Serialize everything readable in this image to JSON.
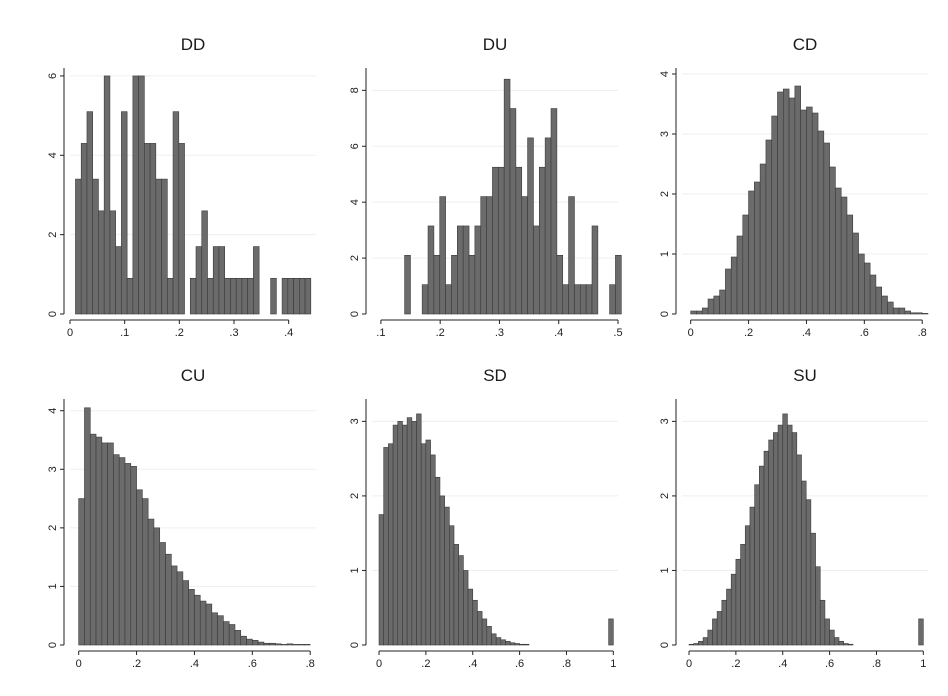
{
  "chart_data": [
    {
      "type": "bar",
      "title": "DD",
      "xlabel": "",
      "ylabel": "",
      "xlim": [
        0,
        0.45
      ],
      "ylim": [
        0,
        6.2
      ],
      "xticks": [
        0,
        0.1,
        0.2,
        0.3,
        0.4
      ],
      "xtick_labels": [
        "0",
        ".1",
        ".2",
        ".3",
        ".4"
      ],
      "yticks": [
        0,
        2,
        4,
        6
      ],
      "ytick_labels": [
        "0",
        "2",
        "4",
        "6"
      ],
      "grid": true,
      "bin_start": 0.01,
      "bin_width": 0.0105,
      "values": [
        3.4,
        4.3,
        5.1,
        3.4,
        2.6,
        6.0,
        2.6,
        1.7,
        5.1,
        0.9,
        6.0,
        6.0,
        4.3,
        4.3,
        3.4,
        3.4,
        0.9,
        5.1,
        4.3,
        0,
        0.9,
        1.7,
        2.6,
        0.9,
        1.7,
        1.7,
        0.9,
        0.9,
        0.9,
        0.9,
        0.9,
        1.7,
        0,
        0,
        0.9,
        0,
        0.9,
        0.9,
        0.9,
        0.9,
        0.9
      ]
    },
    {
      "type": "bar",
      "title": "DU",
      "xlabel": "",
      "ylabel": "",
      "xlim": [
        0.085,
        0.5
      ],
      "ylim": [
        0,
        8.8
      ],
      "xticks": [
        0.1,
        0.2,
        0.3,
        0.4,
        0.5
      ],
      "xtick_labels": [
        ".1",
        ".2",
        ".3",
        ".4",
        ".5"
      ],
      "yticks": [
        0,
        2,
        4,
        6,
        8
      ],
      "ytick_labels": [
        "0",
        "2",
        "4",
        "6",
        "8"
      ],
      "grid": true,
      "bin_start": 0.14,
      "bin_width": 0.00988,
      "values": [
        2.1,
        0,
        0,
        1.05,
        3.15,
        2.1,
        4.2,
        1.05,
        2.1,
        3.15,
        3.15,
        2.1,
        3.15,
        4.2,
        4.2,
        5.25,
        5.25,
        8.4,
        7.35,
        5.25,
        4.2,
        6.3,
        3.15,
        5.25,
        6.3,
        7.35,
        2.1,
        1.05,
        4.2,
        1.05,
        1.05,
        1.05,
        3.15,
        0,
        0,
        1.05,
        2.1
      ]
    },
    {
      "type": "bar",
      "title": "CD",
      "xlabel": "",
      "ylabel": "",
      "xlim": [
        -0.03,
        0.82
      ],
      "ylim": [
        0,
        4.1
      ],
      "xticks": [
        0,
        0.2,
        0.4,
        0.6,
        0.8
      ],
      "xtick_labels": [
        "0",
        ".2",
        ".4",
        ".6",
        ".8"
      ],
      "yticks": [
        0,
        1,
        2,
        3,
        4
      ],
      "ytick_labels": [
        "0",
        "1",
        "2",
        "3",
        "4"
      ],
      "grid": true,
      "bin_start": 0,
      "bin_width": 0.02,
      "values": [
        0.05,
        0.05,
        0.1,
        0.25,
        0.3,
        0.4,
        0.75,
        0.95,
        1.3,
        1.65,
        2.05,
        2.2,
        2.5,
        2.9,
        3.3,
        3.7,
        3.75,
        3.6,
        3.8,
        3.4,
        3.45,
        3.35,
        3.05,
        2.85,
        2.45,
        2.1,
        1.95,
        1.65,
        1.35,
        1.0,
        0.85,
        0.65,
        0.45,
        0.3,
        0.2,
        0.1,
        0.1,
        0.05,
        0.02,
        0.02,
        0.01
      ]
    },
    {
      "type": "bar",
      "title": "CU",
      "xlabel": "",
      "ylabel": "",
      "xlim": [
        -0.03,
        0.82
      ],
      "ylim": [
        0,
        4.2
      ],
      "xticks": [
        0,
        0.2,
        0.4,
        0.6,
        0.8
      ],
      "xtick_labels": [
        "0",
        ".2",
        ".4",
        ".6",
        ".8"
      ],
      "yticks": [
        0,
        1,
        2,
        3,
        4
      ],
      "ytick_labels": [
        "0",
        "1",
        "2",
        "3",
        "4"
      ],
      "grid": true,
      "bin_start": 0,
      "bin_width": 0.02,
      "values": [
        2.5,
        4.05,
        3.6,
        3.55,
        3.45,
        3.45,
        3.25,
        3.2,
        3.1,
        3.05,
        2.65,
        2.5,
        2.15,
        2.0,
        1.75,
        1.55,
        1.35,
        1.25,
        1.1,
        0.95,
        0.85,
        0.75,
        0.7,
        0.55,
        0.5,
        0.4,
        0.35,
        0.25,
        0.15,
        0.1,
        0.08,
        0.05,
        0.03,
        0.03,
        0.02,
        0.01,
        0.02,
        0.01,
        0.01,
        0.01
      ]
    },
    {
      "type": "bar",
      "title": "SD",
      "xlabel": "",
      "ylabel": "",
      "xlim": [
        -0.03,
        1.02
      ],
      "ylim": [
        0,
        3.3
      ],
      "xticks": [
        0,
        0.2,
        0.4,
        0.6,
        0.8,
        1
      ],
      "xtick_labels": [
        "0",
        ".2",
        ".4",
        ".6",
        ".8",
        "1"
      ],
      "yticks": [
        0,
        1,
        2,
        3
      ],
      "ytick_labels": [
        "0",
        "1",
        "2",
        "3"
      ],
      "grid": true,
      "bin_start": 0,
      "bin_width": 0.02,
      "values": [
        1.75,
        2.65,
        2.7,
        2.95,
        3.0,
        2.95,
        3.05,
        3.0,
        3.1,
        2.7,
        2.75,
        2.55,
        2.25,
        2.0,
        1.85,
        1.6,
        1.35,
        1.2,
        1.0,
        0.75,
        0.6,
        0.45,
        0.35,
        0.25,
        0.15,
        0.1,
        0.07,
        0.05,
        0.03,
        0.02,
        0.01,
        0.01,
        0,
        0,
        0,
        0,
        0,
        0,
        0,
        0,
        0,
        0,
        0,
        0,
        0,
        0,
        0,
        0,
        0,
        0.35
      ]
    },
    {
      "type": "bar",
      "title": "SU",
      "xlabel": "",
      "ylabel": "",
      "xlim": [
        -0.03,
        1.02
      ],
      "ylim": [
        0,
        3.3
      ],
      "xticks": [
        0,
        0.2,
        0.4,
        0.6,
        0.8,
        1
      ],
      "xtick_labels": [
        "0",
        ".2",
        ".4",
        ".6",
        ".8",
        "1"
      ],
      "yticks": [
        0,
        1,
        2,
        3
      ],
      "ytick_labels": [
        "0",
        "1",
        "2",
        "3"
      ],
      "grid": true,
      "bin_start": 0,
      "bin_width": 0.02,
      "values": [
        0.01,
        0.02,
        0.05,
        0.1,
        0.2,
        0.35,
        0.45,
        0.6,
        0.75,
        0.95,
        1.15,
        1.35,
        1.6,
        1.85,
        2.15,
        2.4,
        2.6,
        2.75,
        2.85,
        2.95,
        3.1,
        2.95,
        2.85,
        2.55,
        2.2,
        1.95,
        1.5,
        1.05,
        0.6,
        0.35,
        0.2,
        0.1,
        0.05,
        0.02,
        0.01,
        0,
        0,
        0,
        0,
        0,
        0,
        0,
        0,
        0,
        0,
        0,
        0,
        0,
        0,
        0.35
      ]
    }
  ]
}
